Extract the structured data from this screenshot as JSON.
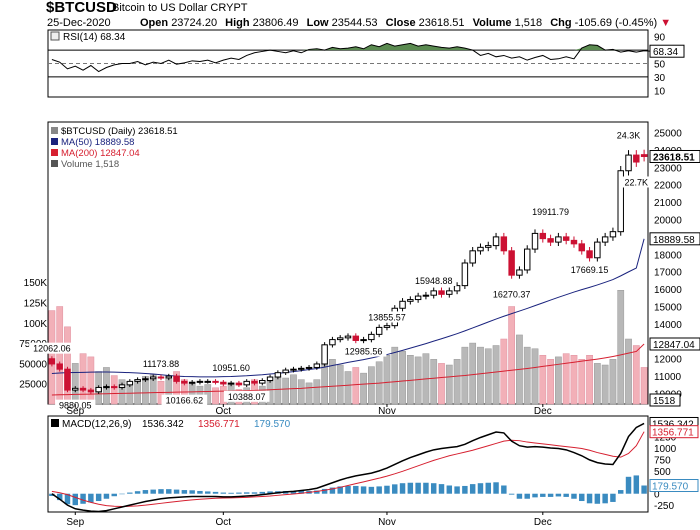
{
  "header": {
    "symbol": "$BTCUSD",
    "description": "Bitcoin to US Dollar  CRYPT",
    "date": "25-Dec-2020",
    "open_label": "Open",
    "open": "23724.20",
    "high_label": "High",
    "high": "23806.49",
    "low_label": "Low",
    "low": "23544.53",
    "close_label": "Close",
    "close": "23618.51",
    "volume_label": "Volume",
    "volume": "1,518",
    "chg_label": "Chg",
    "chg": "-105.69 (-0.45%)"
  },
  "colors": {
    "up": "#000000",
    "down": "#cc1133",
    "ma50": "#1a237e",
    "ma200": "#d62030",
    "rsi_fill": "#5a8a50",
    "vol_up": "#b8b8b8",
    "vol_down": "#f2b0b8",
    "macd_hist": "#3a8bc0",
    "macd_line": "#000000",
    "signal_line": "#d62030"
  },
  "chart_data": [
    {
      "type": "line",
      "name": "rsi-panel",
      "title": "RSI(14) 68.34",
      "value_label": "68.34",
      "ylim": [
        0,
        100
      ],
      "yticks": [
        "90",
        "70",
        "50",
        "30",
        "10"
      ],
      "reference_lines": [
        70,
        50,
        30
      ],
      "values": [
        56,
        52,
        42,
        46,
        40,
        47,
        38,
        44,
        48,
        50,
        50,
        53,
        48,
        52,
        50,
        55,
        49,
        51,
        54,
        53,
        55,
        51,
        55,
        58,
        56,
        62,
        66,
        68,
        70,
        68,
        66,
        69,
        66,
        71,
        72,
        70,
        74,
        72,
        73,
        75,
        72,
        78,
        75,
        80,
        76,
        78,
        80,
        76,
        78,
        76,
        74,
        73,
        75,
        73,
        70,
        62,
        65,
        60,
        62,
        58,
        60,
        55,
        59,
        62,
        56,
        57,
        60,
        57,
        73,
        78,
        77,
        70,
        71,
        67,
        69,
        67,
        69,
        68.34
      ],
      "x_range": [
        0,
        77
      ]
    },
    {
      "type": "candlestick",
      "name": "price-panel",
      "legend": [
        {
          "label": "$BTCUSD (Daily) 23618.51",
          "color": "#000000"
        },
        {
          "label": "MA(50) 18889.58",
          "color": "#1a237e"
        },
        {
          "label": "MA(200) 12847.04",
          "color": "#d62030"
        },
        {
          "label": "Volume 1,518",
          "color": "#555555"
        }
      ],
      "yticks": [
        "25000",
        "24000",
        "23000",
        "22000",
        "21000",
        "20000",
        "19000",
        "18000",
        "17000",
        "16000",
        "15000",
        "14000",
        "13000",
        "12000",
        "11000",
        "10000"
      ],
      "last_price_label": "23618.51",
      "ma50_label": "18889.58",
      "ma200_label": "12847.04",
      "volume_axis_ticks": [
        "150K",
        "125K",
        "100K",
        "75000",
        "50000",
        "25000"
      ],
      "volume_last_label": "1518",
      "close": [
        11700,
        11400,
        10200,
        10300,
        10200,
        10100,
        10350,
        10400,
        10350,
        10500,
        10700,
        10800,
        10850,
        10950,
        10900,
        11000,
        10700,
        10600,
        10650,
        10700,
        10700,
        10650,
        10550,
        10600,
        10500,
        10700,
        10600,
        10750,
        10950,
        11200,
        11350,
        11400,
        11450,
        11500,
        11700,
        12800,
        13100,
        13200,
        13300,
        13050,
        13100,
        13400,
        13800,
        13900,
        14900,
        15300,
        15400,
        15600,
        15650,
        15900,
        15700,
        15900,
        16200,
        17500,
        18200,
        18400,
        18500,
        19000,
        18200,
        16800,
        17100,
        18300,
        19200,
        18900,
        18700,
        19000,
        18800,
        18600,
        18200,
        17800,
        18700,
        19000,
        19300,
        22800,
        23700,
        23300,
        23618.51
      ],
      "open": [
        12000,
        11700,
        11400,
        10200,
        10300,
        10200,
        10100,
        10350,
        10400,
        10350,
        10500,
        10700,
        10800,
        10850,
        10950,
        10900,
        11000,
        10700,
        10600,
        10650,
        10700,
        10700,
        10650,
        10550,
        10600,
        10500,
        10700,
        10600,
        10750,
        10950,
        11200,
        11350,
        11400,
        11450,
        11500,
        11700,
        12800,
        13100,
        13200,
        13300,
        13050,
        13100,
        13400,
        13800,
        13900,
        14900,
        15300,
        15400,
        15600,
        15650,
        15900,
        15700,
        15900,
        16200,
        17500,
        18200,
        18400,
        18500,
        19000,
        18200,
        16800,
        17100,
        18300,
        19200,
        18900,
        18700,
        19000,
        18800,
        18600,
        18200,
        17800,
        18700,
        19000,
        19300,
        22800,
        23700,
        23724.2
      ],
      "ma50": [
        11150,
        11180,
        11200,
        11210,
        11220,
        11230,
        11240,
        11240,
        11230,
        11220,
        11200,
        11180,
        11150,
        11120,
        11080,
        11040,
        11000,
        10980,
        10970,
        10960,
        10960,
        10960,
        10970,
        10980,
        11000,
        11020,
        11050,
        11080,
        11120,
        11160,
        11210,
        11260,
        11320,
        11380,
        11440,
        11520,
        11610,
        11700,
        11790,
        11870,
        11950,
        12040,
        12140,
        12240,
        12360,
        12480,
        12610,
        12740,
        12870,
        13010,
        13150,
        13290,
        13440,
        13600,
        13770,
        13940,
        14110,
        14280,
        14440,
        14590,
        14740,
        14890,
        15050,
        15210,
        15370,
        15530,
        15680,
        15830,
        15970,
        16100,
        16240,
        16390,
        16550,
        16760,
        16990,
        17210,
        18889.58
      ],
      "ma200": [
        9920,
        9930,
        9940,
        9950,
        9960,
        9970,
        9980,
        9990,
        10000,
        10010,
        10020,
        10030,
        10040,
        10050,
        10060,
        10070,
        10080,
        10090,
        10100,
        10110,
        10120,
        10130,
        10140,
        10150,
        10160,
        10170,
        10180,
        10200,
        10220,
        10240,
        10260,
        10280,
        10300,
        10330,
        10360,
        10390,
        10420,
        10450,
        10480,
        10510,
        10540,
        10570,
        10600,
        10640,
        10680,
        10720,
        10760,
        10800,
        10840,
        10880,
        10920,
        10960,
        11000,
        11040,
        11090,
        11140,
        11190,
        11240,
        11290,
        11340,
        11390,
        11440,
        11500,
        11560,
        11620,
        11680,
        11740,
        11800,
        11860,
        11920,
        11980,
        12050,
        12130,
        12220,
        12320,
        12420,
        12847.04
      ],
      "volume": [
        115,
        120,
        95,
        50,
        62,
        58,
        40,
        45,
        35,
        30,
        28,
        30,
        34,
        36,
        28,
        32,
        40,
        30,
        25,
        22,
        24,
        20,
        22,
        26,
        18,
        20,
        30,
        22,
        28,
        34,
        32,
        36,
        30,
        26,
        30,
        50,
        55,
        48,
        40,
        45,
        38,
        46,
        52,
        60,
        70,
        65,
        60,
        58,
        62,
        55,
        50,
        48,
        55,
        70,
        75,
        70,
        68,
        72,
        80,
        120,
        85,
        70,
        68,
        60,
        55,
        58,
        62,
        60,
        55,
        60,
        50,
        48,
        55,
        140,
        80,
        72,
        45
      ],
      "annotations": [
        {
          "text": "12062.06",
          "i": 0,
          "price": 12062.06,
          "pos": "above"
        },
        {
          "text": "9880.05",
          "i": 3,
          "price": 9880.05,
          "pos": "below"
        },
        {
          "text": "11173.88",
          "i": 14,
          "price": 11173.88,
          "pos": "above"
        },
        {
          "text": "10166.62",
          "i": 17,
          "price": 10166.62,
          "pos": "below"
        },
        {
          "text": "10951.60",
          "i": 23,
          "price": 10951.6,
          "pos": "above"
        },
        {
          "text": "10388.07",
          "i": 25,
          "price": 10388.07,
          "pos": "below"
        },
        {
          "text": "13855.57",
          "i": 43,
          "price": 13855.57,
          "pos": "above"
        },
        {
          "text": "12985.56",
          "i": 40,
          "price": 12985.56,
          "pos": "below"
        },
        {
          "text": "15948.88",
          "i": 49,
          "price": 15948.88,
          "pos": "above"
        },
        {
          "text": "16270.37",
          "i": 59,
          "price": 16270.37,
          "pos": "below"
        },
        {
          "text": "19911.79",
          "i": 64,
          "price": 19911.79,
          "pos": "above"
        },
        {
          "text": "17669.15",
          "i": 69,
          "price": 17669.15,
          "pos": "below"
        },
        {
          "text": "24.3K",
          "i": 74,
          "price": 24300,
          "pos": "above"
        },
        {
          "text": "22.7K",
          "i": 75,
          "price": 22700,
          "pos": "below"
        }
      ]
    },
    {
      "type": "line",
      "name": "macd-panel",
      "title": "MACD(12,26,9)",
      "macd_value": "1536.342",
      "signal_value": "1356.771",
      "hist_value": "179.570",
      "macd_axis_label": "1536.342",
      "signal_axis_label": "1356.771",
      "hist_axis_label": "179.570",
      "yticks": [
        "1250",
        "1000",
        "750",
        "500",
        "250",
        "0",
        "-250"
      ],
      "ylim": [
        -400,
        1700
      ],
      "macd": [
        0,
        -120,
        -250,
        -330,
        -360,
        -380,
        -390,
        -370,
        -330,
        -290,
        -250,
        -210,
        -170,
        -140,
        -110,
        -90,
        -80,
        -70,
        -60,
        -60,
        -60,
        -60,
        -70,
        -70,
        -60,
        -50,
        -40,
        -20,
        0,
        20,
        40,
        50,
        70,
        90,
        120,
        180,
        240,
        300,
        350,
        390,
        420,
        450,
        500,
        560,
        640,
        720,
        790,
        850,
        910,
        960,
        990,
        1010,
        1030,
        1080,
        1160,
        1230,
        1290,
        1350,
        1330,
        1150,
        1050,
        1020,
        1030,
        1020,
        1000,
        990,
        960,
        900,
        830,
        740,
        680,
        650,
        640,
        880,
        1250,
        1450,
        1536.342
      ],
      "signal": [
        50,
        20,
        -20,
        -80,
        -140,
        -190,
        -230,
        -260,
        -275,
        -280,
        -275,
        -265,
        -250,
        -230,
        -210,
        -190,
        -170,
        -150,
        -135,
        -120,
        -110,
        -100,
        -95,
        -90,
        -85,
        -80,
        -70,
        -60,
        -50,
        -35,
        -20,
        -5,
        10,
        30,
        50,
        75,
        105,
        140,
        180,
        220,
        260,
        300,
        340,
        385,
        435,
        490,
        550,
        610,
        670,
        730,
        780,
        830,
        870,
        910,
        950,
        1000,
        1050,
        1100,
        1150,
        1170,
        1160,
        1130,
        1110,
        1090,
        1070,
        1050,
        1030,
        1010,
        990,
        950,
        900,
        860,
        820,
        800,
        880,
        1050,
        1356.771
      ]
    }
  ],
  "x_axis": {
    "labels": [
      {
        "text": "Sep",
        "i": 3
      },
      {
        "text": "Oct",
        "i": 22
      },
      {
        "text": "Nov",
        "i": 43
      },
      {
        "text": "Dec",
        "i": 63
      }
    ]
  }
}
